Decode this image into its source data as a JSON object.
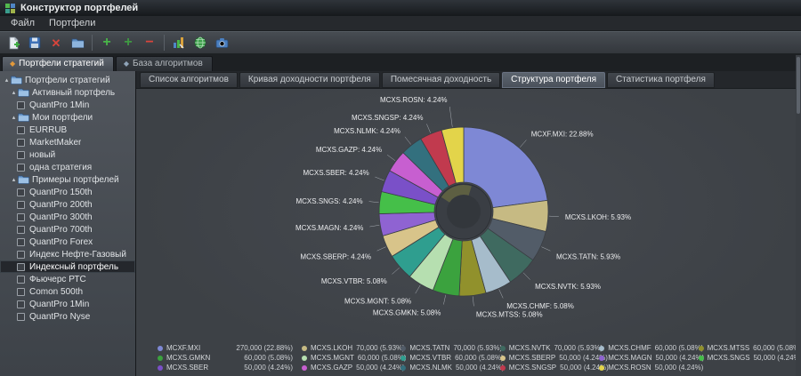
{
  "window": {
    "title": "Конструктор портфелей"
  },
  "menu": {
    "items": [
      "Файл",
      "Портфели"
    ]
  },
  "toolbar": {
    "buttons": [
      "new-portfolio",
      "save",
      "delete",
      "open-folder",
      "add",
      "add-alt",
      "remove",
      "chart-settings",
      "globe-refresh",
      "snapshot"
    ]
  },
  "doc_tabs": [
    {
      "label": "Портфели стратегий",
      "active": true
    },
    {
      "label": "База алгоритмов",
      "active": false
    }
  ],
  "sidebar": {
    "tree": [
      {
        "label": "Портфели стратегий",
        "type": "folder",
        "level": 0
      },
      {
        "label": "Активный портфель",
        "type": "folder",
        "level": 1
      },
      {
        "label": "QuantPro 1Min",
        "type": "check",
        "level": 2
      },
      {
        "label": "Мои портфели",
        "type": "folder",
        "level": 1
      },
      {
        "label": "EURRUB",
        "type": "check",
        "level": 2
      },
      {
        "label": "MarketMaker",
        "type": "check",
        "level": 2
      },
      {
        "label": "новый",
        "type": "check",
        "level": 2
      },
      {
        "label": "одна стратегия",
        "type": "check",
        "level": 2
      },
      {
        "label": "Примеры портфелей",
        "type": "folder",
        "level": 1
      },
      {
        "label": "QuantPro 150th",
        "type": "check",
        "level": 2
      },
      {
        "label": "QuantPro 200th",
        "type": "check",
        "level": 2
      },
      {
        "label": "QuantPro 300th",
        "type": "check",
        "level": 2
      },
      {
        "label": "QuantPro 700th",
        "type": "check",
        "level": 2
      },
      {
        "label": "QuantPro Forex",
        "type": "check",
        "level": 2
      },
      {
        "label": "Индекс Нефте-Газовый",
        "type": "check",
        "level": 2
      },
      {
        "label": "Индексный портфель",
        "type": "check",
        "level": 2,
        "selected": true
      },
      {
        "label": "Фьючерс РТС",
        "type": "check",
        "level": 2
      },
      {
        "label": "Comon 500th",
        "type": "check",
        "level": 2
      },
      {
        "label": "QuantPro 1Min",
        "type": "check",
        "level": 2
      },
      {
        "label": "QuantPro Nyse",
        "type": "check",
        "level": 2
      }
    ]
  },
  "view_tabs": [
    {
      "label": "Список алгоритмов",
      "active": false
    },
    {
      "label": "Кривая доходности портфеля",
      "active": false
    },
    {
      "label": "Помесячная доходность",
      "active": false
    },
    {
      "label": "Структура портфеля",
      "active": true
    },
    {
      "label": "Статистика портфеля",
      "active": false
    }
  ],
  "chart_data": {
    "type": "pie",
    "donut": true,
    "start_angle": "top",
    "direction": "clockwise",
    "slices": [
      {
        "name": "MCXF.MXI",
        "value": 270000,
        "value_label": "270,000",
        "pct": "22.88%",
        "color": "#7e88d5"
      },
      {
        "name": "MCXS.LKOH",
        "value": 70000,
        "value_label": "70,000",
        "pct": "5.93%",
        "color": "#c6ba83"
      },
      {
        "name": "MCXS.TATN",
        "value": 70000,
        "value_label": "70,000",
        "pct": "5.93%",
        "color": "#525c68"
      },
      {
        "name": "MCXS.NVTK",
        "value": 70000,
        "value_label": "70,000",
        "pct": "5.93%",
        "color": "#3f6a60"
      },
      {
        "name": "MCXS.CHMF",
        "value": 60000,
        "value_label": "60,000",
        "pct": "5.08%",
        "color": "#a6bccb"
      },
      {
        "name": "MCXS.MTSS",
        "value": 60000,
        "value_label": "60,000",
        "pct": "5.08%",
        "color": "#91912c"
      },
      {
        "name": "MCXS.GMKN",
        "value": 60000,
        "value_label": "60,000",
        "pct": "5.08%",
        "color": "#3ba23e"
      },
      {
        "name": "MCXS.MGNT",
        "value": 60000,
        "value_label": "60,000",
        "pct": "5.08%",
        "color": "#b6dfb0"
      },
      {
        "name": "MCXS.VTBR",
        "value": 60000,
        "value_label": "60,000",
        "pct": "5.08%",
        "color": "#2f9e8f"
      },
      {
        "name": "MCXS.SBERP",
        "value": 50000,
        "value_label": "50,000",
        "pct": "4.24%",
        "color": "#d8c48a"
      },
      {
        "name": "MCXS.MAGN",
        "value": 50000,
        "value_label": "50,000",
        "pct": "4.24%",
        "color": "#8f63d2"
      },
      {
        "name": "MCXS.SNGS",
        "value": 50000,
        "value_label": "50,000",
        "pct": "4.24%",
        "color": "#45bf49"
      },
      {
        "name": "MCXS.SBER",
        "value": 50000,
        "value_label": "50,000",
        "pct": "4.24%",
        "color": "#7a50c8"
      },
      {
        "name": "MCXS.GAZP",
        "value": 50000,
        "value_label": "50,000",
        "pct": "4.24%",
        "color": "#c75fd0"
      },
      {
        "name": "MCXS.NLMK",
        "value": 50000,
        "value_label": "50,000",
        "pct": "4.24%",
        "color": "#33707e"
      },
      {
        "name": "MCXS.SNGSP",
        "value": 50000,
        "value_label": "50,000",
        "pct": "4.24%",
        "color": "#c13a4e"
      },
      {
        "name": "MCXS.ROSN",
        "value": 50000,
        "value_label": "50,000",
        "pct": "4.24%",
        "color": "#e3d44a"
      }
    ]
  }
}
